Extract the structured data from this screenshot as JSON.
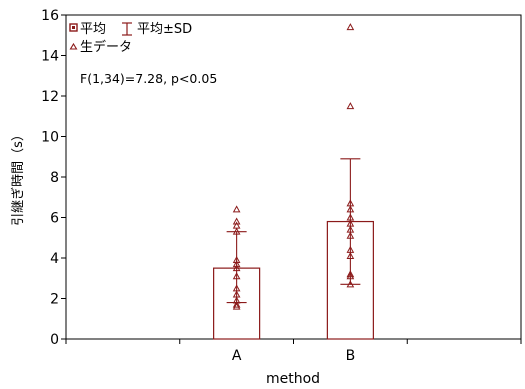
{
  "chart_data": {
    "type": "bar",
    "categories": [
      "A",
      "B"
    ],
    "xlabel": "method",
    "ylabel": "引継ぎ時間（s）",
    "ylim": [
      0,
      16
    ],
    "yticks": [
      0,
      2,
      4,
      6,
      8,
      10,
      12,
      14,
      16
    ],
    "grid": false,
    "legend": {
      "position": "top-left",
      "mean_label": "平均",
      "sd_label": "平均±SD",
      "raw_label": "生データ"
    },
    "annotation": "F(1,34)=7.28, p<0.05",
    "means": [
      3.5,
      5.8
    ],
    "sd_low": [
      1.8,
      2.7
    ],
    "sd_high": [
      5.3,
      8.9
    ],
    "raw_points": [
      [
        6.4,
        5.8,
        5.6,
        5.3,
        3.9,
        3.7,
        3.5,
        3.1,
        2.5,
        2.2,
        1.9,
        1.7,
        1.6
      ],
      [
        15.4,
        11.5,
        6.7,
        6.4,
        6.0,
        5.7,
        5.4,
        5.1,
        4.4,
        4.1,
        3.2,
        3.1,
        2.7
      ]
    ],
    "colors": {
      "series": "#8b1a1a",
      "axis": "#000000"
    }
  }
}
